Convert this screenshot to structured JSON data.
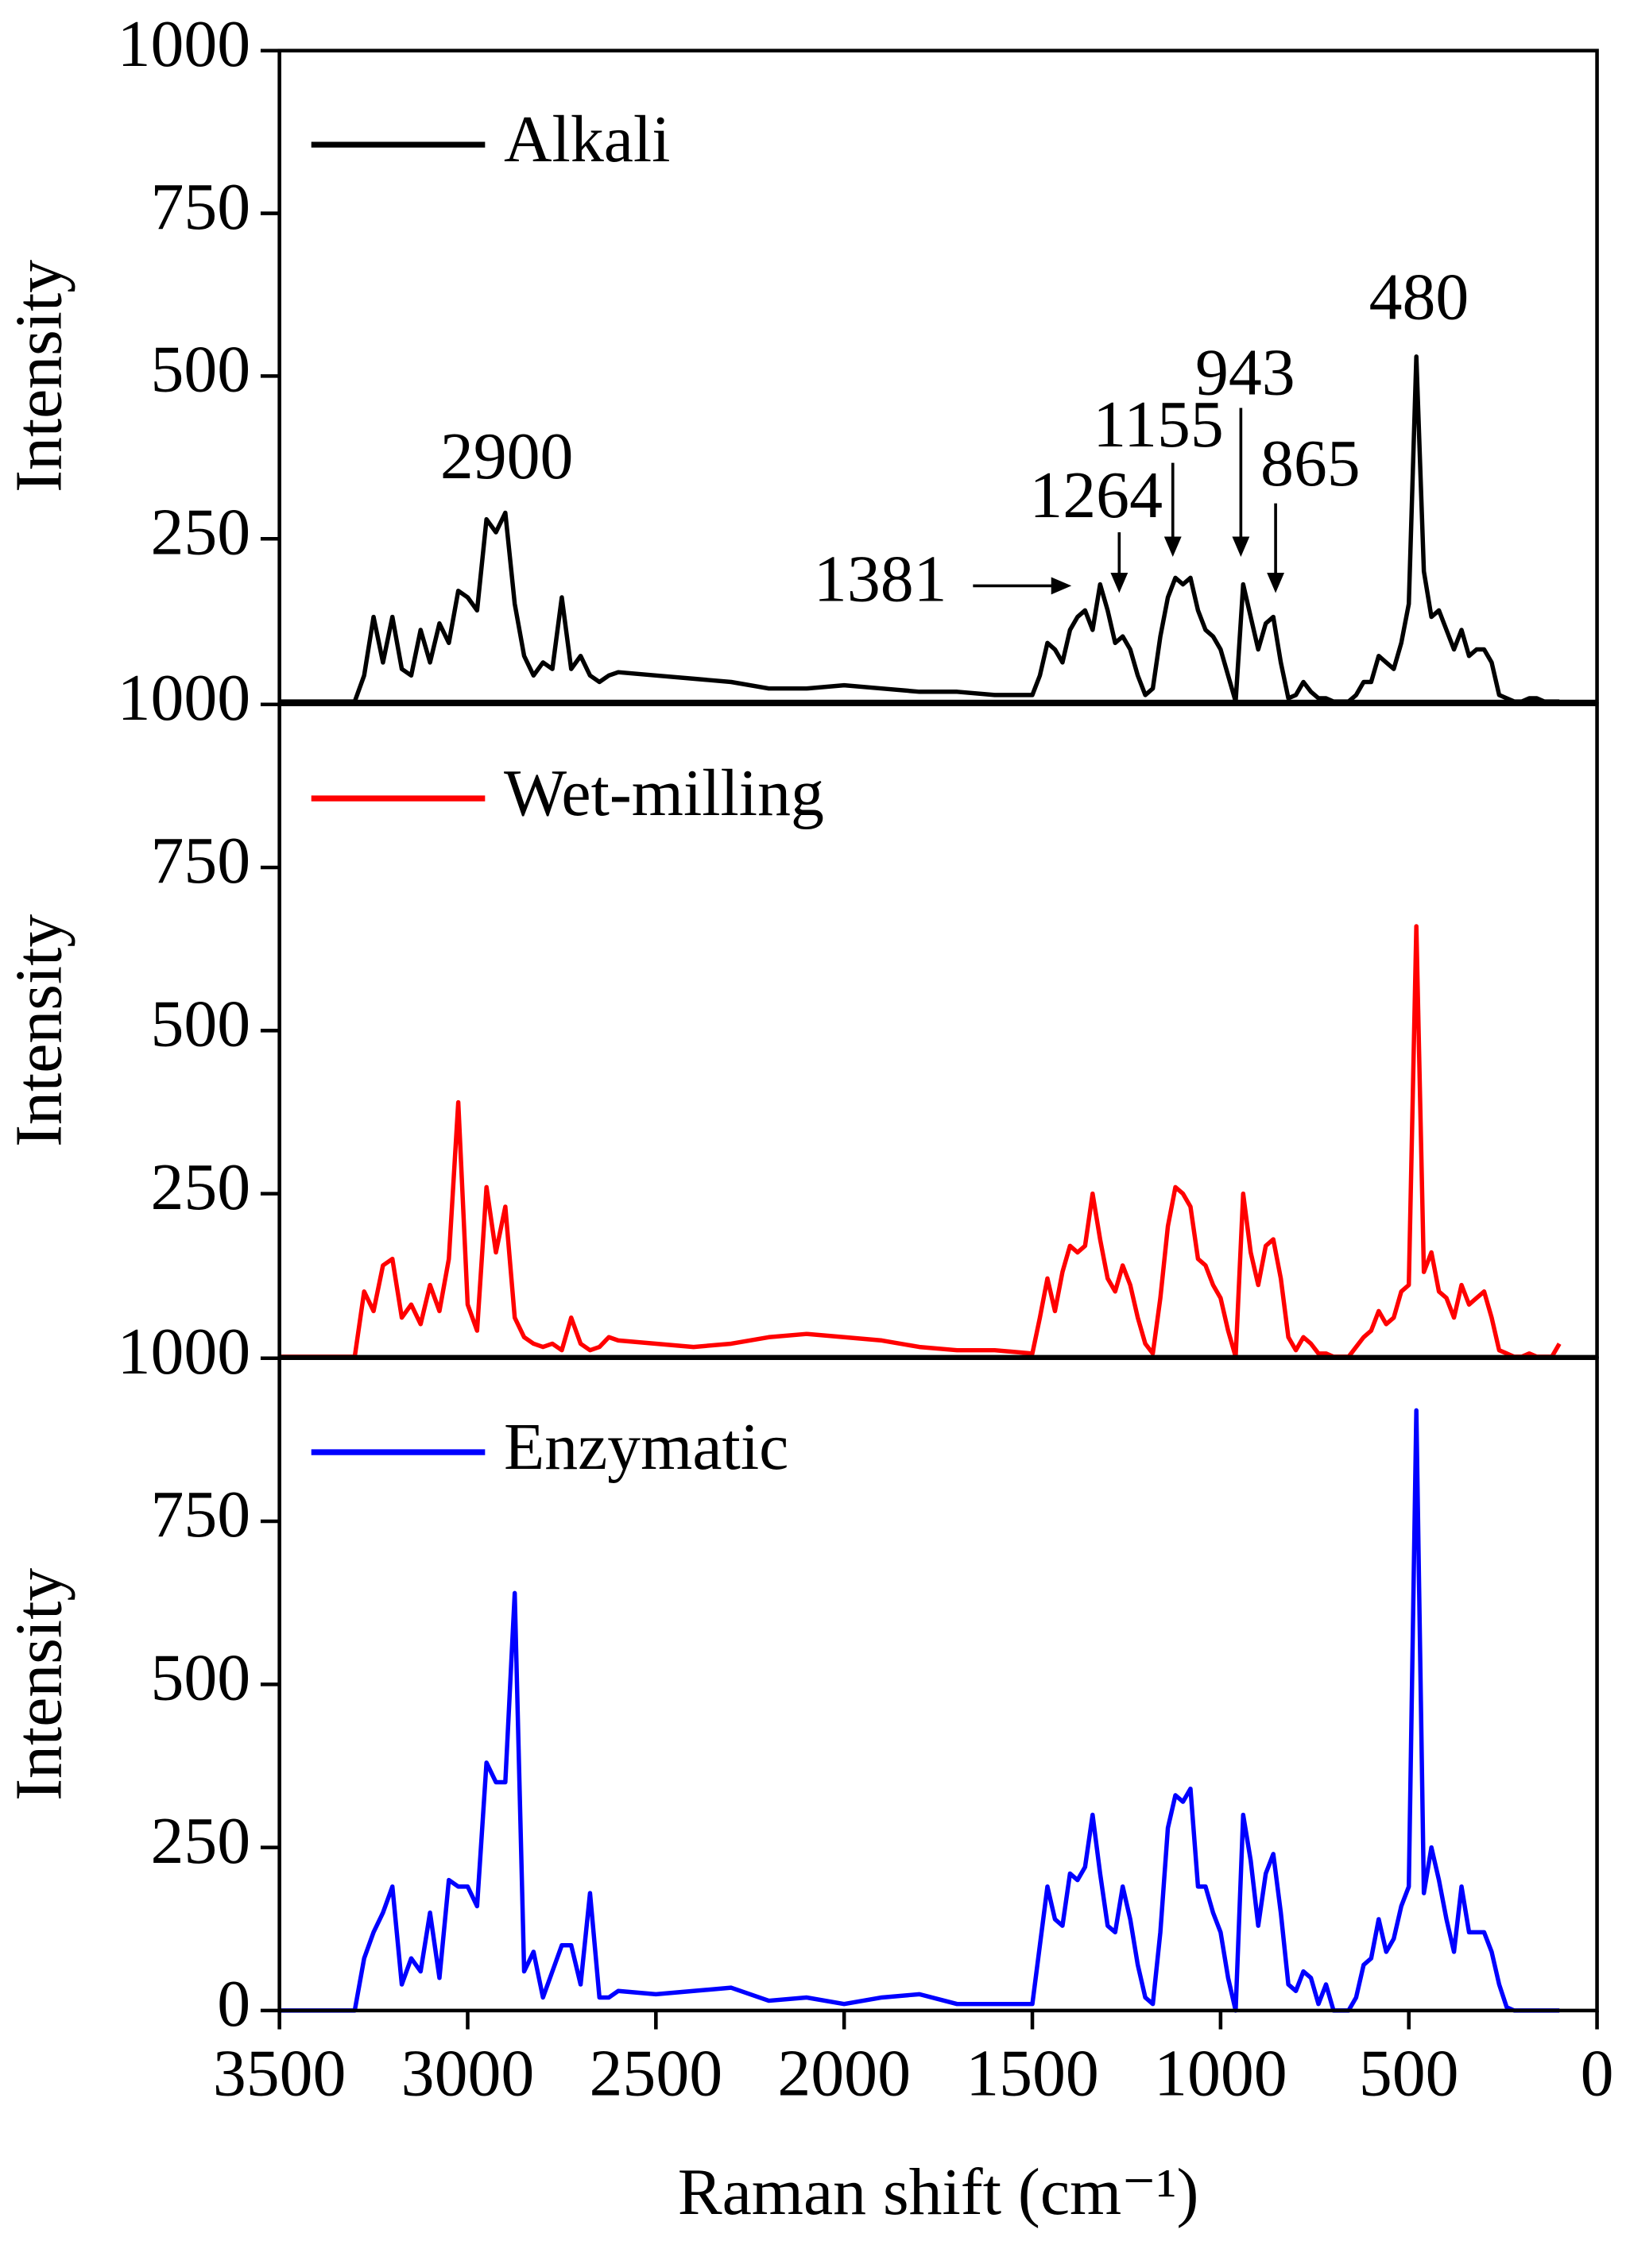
{
  "chart_data": [
    {
      "type": "line",
      "y_label": "Intensity",
      "ylim": [
        0,
        1000
      ],
      "yticks": [
        250,
        500,
        750,
        1000
      ],
      "xlim": [
        3500,
        0
      ],
      "legend": "upper left",
      "annotations": [
        "2900",
        "1381",
        "1264",
        "1155",
        "943",
        "865",
        "480"
      ],
      "x": [
        3500,
        3300,
        3275,
        3250,
        3225,
        3200,
        3175,
        3150,
        3125,
        3100,
        3075,
        3050,
        3025,
        3000,
        2975,
        2950,
        2925,
        2900,
        2875,
        2850,
        2825,
        2800,
        2775,
        2750,
        2725,
        2700,
        2675,
        2650,
        2625,
        2600,
        2500,
        2400,
        2300,
        2200,
        2100,
        2000,
        1900,
        1800,
        1700,
        1600,
        1500,
        1480,
        1460,
        1440,
        1420,
        1400,
        1380,
        1360,
        1340,
        1320,
        1300,
        1280,
        1260,
        1240,
        1220,
        1200,
        1180,
        1160,
        1140,
        1120,
        1100,
        1080,
        1060,
        1040,
        1020,
        1000,
        980,
        960,
        940,
        920,
        900,
        880,
        860,
        840,
        820,
        800,
        780,
        760,
        740,
        720,
        700,
        680,
        660,
        640,
        620,
        600,
        580,
        560,
        540,
        520,
        500,
        480,
        460,
        440,
        420,
        400,
        380,
        360,
        340,
        320,
        300,
        280,
        260,
        240,
        220,
        200,
        180,
        160,
        140,
        120,
        100
      ],
      "series": [
        {
          "name": "Alkali",
          "color": "#000000",
          "values": [
            0,
            0,
            40,
            130,
            60,
            130,
            50,
            40,
            110,
            60,
            120,
            90,
            170,
            160,
            140,
            280,
            260,
            290,
            150,
            70,
            40,
            60,
            50,
            160,
            50,
            70,
            40,
            30,
            40,
            45,
            40,
            35,
            30,
            20,
            20,
            25,
            20,
            15,
            15,
            10,
            10,
            40,
            90,
            80,
            60,
            110,
            130,
            140,
            110,
            180,
            140,
            90,
            100,
            80,
            40,
            10,
            20,
            100,
            160,
            190,
            180,
            190,
            140,
            110,
            100,
            80,
            40,
            0,
            180,
            130,
            80,
            120,
            130,
            60,
            5,
            10,
            30,
            15,
            5,
            5,
            0,
            0,
            0,
            10,
            30,
            30,
            70,
            60,
            50,
            90,
            150,
            530,
            200,
            130,
            140,
            110,
            80,
            110,
            70,
            80,
            80,
            60,
            10,
            5,
            0,
            0,
            5,
            5,
            0,
            0,
            0
          ]
        }
      ]
    },
    {
      "type": "line",
      "y_label": "Intensity",
      "ylim": [
        0,
        1000
      ],
      "yticks": [
        250,
        500,
        750,
        1000
      ],
      "xlim": [
        3500,
        0
      ],
      "legend": "upper left",
      "x": [
        3500,
        3300,
        3275,
        3250,
        3225,
        3200,
        3175,
        3150,
        3125,
        3100,
        3075,
        3050,
        3025,
        3000,
        2975,
        2950,
        2925,
        2900,
        2875,
        2850,
        2825,
        2800,
        2775,
        2750,
        2725,
        2700,
        2675,
        2650,
        2625,
        2600,
        2500,
        2400,
        2300,
        2200,
        2100,
        2000,
        1900,
        1800,
        1700,
        1600,
        1500,
        1480,
        1460,
        1440,
        1420,
        1400,
        1380,
        1360,
        1340,
        1320,
        1300,
        1280,
        1260,
        1240,
        1220,
        1200,
        1180,
        1160,
        1140,
        1120,
        1100,
        1080,
        1060,
        1040,
        1020,
        1000,
        980,
        960,
        940,
        920,
        900,
        880,
        860,
        840,
        820,
        800,
        780,
        760,
        740,
        720,
        700,
        680,
        660,
        640,
        620,
        600,
        580,
        560,
        540,
        520,
        500,
        480,
        460,
        440,
        420,
        400,
        380,
        360,
        340,
        320,
        300,
        280,
        260,
        240,
        220,
        200,
        180,
        160,
        140,
        120,
        100
      ],
      "series": [
        {
          "name": "Wet-milling",
          "color": "#ff0000",
          "values": [
            0,
            0,
            100,
            70,
            140,
            150,
            60,
            80,
            50,
            110,
            70,
            150,
            390,
            80,
            40,
            260,
            160,
            230,
            60,
            30,
            20,
            15,
            20,
            10,
            60,
            20,
            10,
            15,
            30,
            25,
            20,
            15,
            20,
            30,
            35,
            30,
            25,
            15,
            10,
            10,
            5,
            60,
            120,
            70,
            130,
            170,
            160,
            170,
            250,
            180,
            120,
            100,
            140,
            110,
            60,
            20,
            5,
            90,
            200,
            260,
            250,
            230,
            150,
            140,
            110,
            90,
            40,
            0,
            250,
            160,
            110,
            170,
            180,
            120,
            30,
            10,
            30,
            20,
            5,
            5,
            0,
            0,
            0,
            15,
            30,
            40,
            70,
            50,
            60,
            100,
            110,
            660,
            130,
            160,
            100,
            90,
            60,
            110,
            80,
            90,
            100,
            60,
            10,
            5,
            0,
            0,
            5,
            0,
            0,
            0,
            20
          ]
        }
      ]
    },
    {
      "type": "line",
      "y_label": "Intensity",
      "ylim": [
        0,
        1000
      ],
      "yticks": [
        0,
        250,
        500,
        750,
        1000
      ],
      "xlim": [
        3500,
        0
      ],
      "legend": "upper left",
      "xticks": [
        3500,
        3000,
        2500,
        2000,
        1500,
        1000,
        500,
        0
      ],
      "x_label": "Raman shift (cm⁻¹)",
      "x": [
        3500,
        3300,
        3275,
        3250,
        3225,
        3200,
        3175,
        3150,
        3125,
        3100,
        3075,
        3050,
        3025,
        3000,
        2975,
        2950,
        2925,
        2900,
        2875,
        2850,
        2825,
        2800,
        2775,
        2750,
        2725,
        2700,
        2675,
        2650,
        2625,
        2600,
        2500,
        2400,
        2300,
        2200,
        2100,
        2000,
        1900,
        1800,
        1700,
        1600,
        1500,
        1480,
        1460,
        1440,
        1420,
        1400,
        1380,
        1360,
        1340,
        1320,
        1300,
        1280,
        1260,
        1240,
        1220,
        1200,
        1180,
        1160,
        1140,
        1120,
        1100,
        1080,
        1060,
        1040,
        1020,
        1000,
        980,
        960,
        940,
        920,
        900,
        880,
        860,
        840,
        820,
        800,
        780,
        760,
        740,
        720,
        700,
        680,
        660,
        640,
        620,
        600,
        580,
        560,
        540,
        520,
        500,
        480,
        460,
        440,
        420,
        400,
        380,
        360,
        340,
        320,
        300,
        280,
        260,
        240,
        220,
        200,
        180,
        160,
        140,
        120,
        100
      ],
      "series": [
        {
          "name": "Enzymatic",
          "color": "#0000ff",
          "values": [
            0,
            0,
            80,
            120,
            150,
            190,
            40,
            80,
            60,
            150,
            50,
            200,
            190,
            190,
            160,
            380,
            350,
            350,
            640,
            60,
            90,
            20,
            60,
            100,
            100,
            40,
            180,
            20,
            20,
            30,
            25,
            30,
            35,
            15,
            20,
            10,
            20,
            25,
            10,
            10,
            10,
            100,
            190,
            140,
            130,
            210,
            200,
            220,
            300,
            210,
            130,
            120,
            190,
            140,
            70,
            20,
            10,
            120,
            280,
            330,
            320,
            340,
            190,
            190,
            150,
            120,
            50,
            0,
            300,
            230,
            130,
            210,
            240,
            150,
            40,
            30,
            60,
            50,
            10,
            40,
            0,
            0,
            0,
            20,
            70,
            80,
            140,
            90,
            110,
            160,
            190,
            920,
            180,
            250,
            200,
            140,
            90,
            190,
            120,
            120,
            120,
            90,
            40,
            5,
            0,
            0,
            0,
            0,
            0,
            0,
            0
          ]
        }
      ]
    }
  ]
}
